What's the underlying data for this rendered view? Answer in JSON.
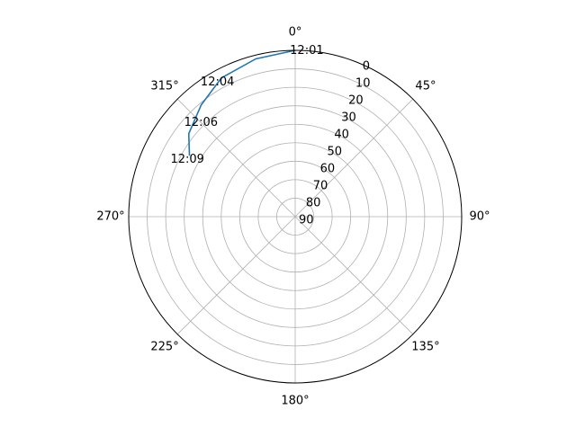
{
  "chart_data": {
    "type": "line",
    "projection": "polar",
    "theta_zero_location": "N",
    "theta_direction": "clockwise",
    "theta_ticks": [
      {
        "deg": 0,
        "label": "0°"
      },
      {
        "deg": 45,
        "label": "45°"
      },
      {
        "deg": 90,
        "label": "90°"
      },
      {
        "deg": 135,
        "label": "135°"
      },
      {
        "deg": 180,
        "label": "180°"
      },
      {
        "deg": 225,
        "label": "225°"
      },
      {
        "deg": 270,
        "label": "270°"
      },
      {
        "deg": 315,
        "label": "315°"
      }
    ],
    "r_axis": {
      "inverted": true,
      "rlim": [
        90,
        0
      ],
      "ticks": [
        0,
        10,
        20,
        30,
        40,
        50,
        60,
        70,
        80,
        90
      ],
      "label_angle_deg": 22.5
    },
    "grid": true,
    "series": [
      {
        "color": "#1f77b4",
        "points": [
          {
            "theta_deg": 0,
            "r": 0
          },
          {
            "theta_deg": 346,
            "r": 2
          },
          {
            "theta_deg": 332,
            "r": 5
          },
          {
            "theta_deg": 320,
            "r": 11
          },
          {
            "theta_deg": 308,
            "r": 17
          },
          {
            "theta_deg": 300,
            "r": 24
          }
        ]
      }
    ],
    "annotations": [
      {
        "text": "12:01",
        "theta_deg": 4,
        "r": 0
      },
      {
        "text": "12:04",
        "theta_deg": 330,
        "r": 6
      },
      {
        "text": "12:06",
        "theta_deg": 315,
        "r": 18
      },
      {
        "text": "12:09",
        "theta_deg": 298,
        "r": 24
      }
    ],
    "colors": {
      "frame": "#000000",
      "grid": "#b0b0b0",
      "text": "#000000"
    }
  }
}
